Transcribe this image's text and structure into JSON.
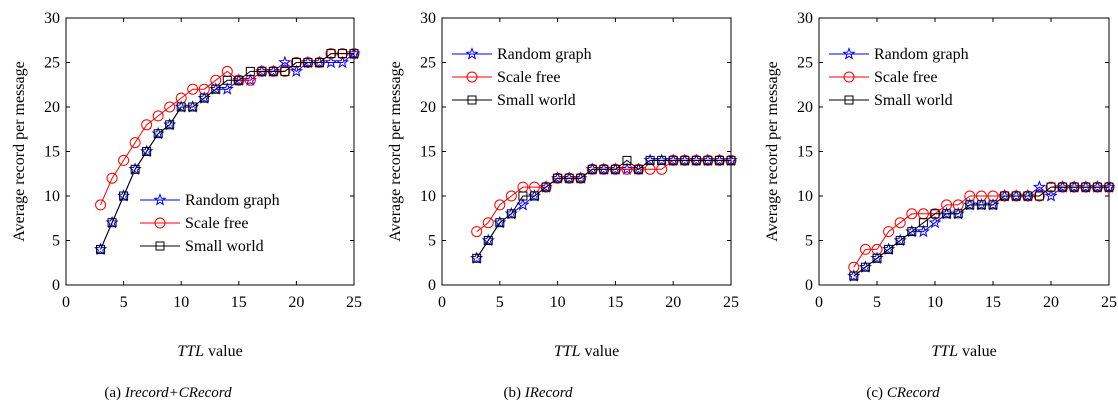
{
  "colors": {
    "random": "#0000ff",
    "scale": "#ff0000",
    "small": "#000000"
  },
  "chart_data": [
    {
      "type": "line",
      "title": "",
      "caption_prefix": "(a) ",
      "caption_italic": "Irecord+CRecord",
      "xlabel_italic": "TTL",
      "xlabel_rest": " value",
      "ylabel": "Average record per message",
      "xlim": [
        0,
        25
      ],
      "ylim": [
        0,
        30
      ],
      "xticks": [
        "0",
        "5",
        "10",
        "15",
        "20",
        "25"
      ],
      "yticks": [
        "0",
        "5",
        "10",
        "15",
        "20",
        "25",
        "30"
      ],
      "legend_position": "lower-right",
      "series": [
        {
          "name": "Random graph",
          "marker": "star",
          "color": "#0000ff",
          "x": [
            3,
            4,
            5,
            6,
            7,
            8,
            9,
            10,
            11,
            12,
            13,
            14,
            15,
            16,
            17,
            18,
            19,
            20,
            21,
            22,
            23,
            24,
            25
          ],
          "y": [
            4,
            7,
            10,
            13,
            15,
            17,
            18,
            20,
            20,
            21,
            22,
            22,
            23,
            23,
            24,
            24,
            25,
            24,
            25,
            25,
            25,
            25,
            26
          ]
        },
        {
          "name": "Scale free",
          "marker": "circle",
          "color": "#ff0000",
          "x": [
            3,
            4,
            5,
            6,
            7,
            8,
            9,
            10,
            11,
            12,
            13,
            14,
            15,
            16,
            17,
            18,
            19,
            20,
            21,
            22,
            23,
            24,
            25
          ],
          "y": [
            9,
            12,
            14,
            16,
            18,
            19,
            20,
            21,
            22,
            22,
            23,
            24,
            23,
            23,
            24,
            24,
            24,
            25,
            25,
            25,
            26,
            26,
            26
          ]
        },
        {
          "name": "Small world",
          "marker": "square",
          "color": "#000000",
          "x": [
            3,
            4,
            5,
            6,
            7,
            8,
            9,
            10,
            11,
            12,
            13,
            14,
            15,
            16,
            17,
            18,
            19,
            20,
            21,
            22,
            23,
            24,
            25
          ],
          "y": [
            4,
            7,
            10,
            13,
            15,
            17,
            18,
            20,
            20,
            21,
            22,
            23,
            23,
            24,
            24,
            24,
            24,
            25,
            25,
            25,
            26,
            26,
            26
          ]
        }
      ]
    },
    {
      "type": "line",
      "title": "",
      "caption_prefix": "(b) ",
      "caption_italic": "IRecord",
      "xlabel_italic": "TTL",
      "xlabel_rest": " value",
      "ylabel": "Average record per message",
      "xlim": [
        0,
        25
      ],
      "ylim": [
        0,
        30
      ],
      "xticks": [
        "0",
        "5",
        "10",
        "15",
        "20",
        "25"
      ],
      "yticks": [
        "0",
        "5",
        "10",
        "15",
        "20",
        "25",
        "30"
      ],
      "legend_position": "upper-left",
      "series": [
        {
          "name": "Random graph",
          "marker": "star",
          "color": "#0000ff",
          "x": [
            3,
            4,
            5,
            6,
            7,
            8,
            9,
            10,
            11,
            12,
            13,
            14,
            15,
            16,
            17,
            18,
            19,
            20,
            21,
            22,
            23,
            24,
            25
          ],
          "y": [
            3,
            5,
            7,
            8,
            9,
            10,
            11,
            12,
            12,
            12,
            13,
            13,
            13,
            13,
            13,
            14,
            14,
            14,
            14,
            14,
            14,
            14,
            14
          ]
        },
        {
          "name": "Scale free",
          "marker": "circle",
          "color": "#ff0000",
          "x": [
            3,
            4,
            5,
            6,
            7,
            8,
            9,
            10,
            11,
            12,
            13,
            14,
            15,
            16,
            17,
            18,
            19,
            20,
            21,
            22,
            23,
            24,
            25
          ],
          "y": [
            6,
            7,
            9,
            10,
            11,
            11,
            11,
            12,
            12,
            12,
            13,
            13,
            13,
            13,
            13,
            13,
            13,
            14,
            14,
            14,
            14,
            14,
            14
          ]
        },
        {
          "name": "Small world",
          "marker": "square",
          "color": "#000000",
          "x": [
            3,
            4,
            5,
            6,
            7,
            8,
            9,
            10,
            11,
            12,
            13,
            14,
            15,
            16,
            17,
            18,
            19,
            20,
            21,
            22,
            23,
            24,
            25
          ],
          "y": [
            3,
            5,
            7,
            8,
            10,
            10,
            11,
            12,
            12,
            12,
            13,
            13,
            13,
            14,
            13,
            14,
            14,
            14,
            14,
            14,
            14,
            14,
            14
          ]
        }
      ]
    },
    {
      "type": "line",
      "title": "",
      "caption_prefix": "(c) ",
      "caption_italic": "CRecord",
      "xlabel_italic": "TTL",
      "xlabel_rest": " value",
      "ylabel": "Average record per message",
      "xlim": [
        0,
        25
      ],
      "ylim": [
        0,
        30
      ],
      "xticks": [
        "0",
        "5",
        "10",
        "15",
        "20",
        "25"
      ],
      "yticks": [
        "0",
        "5",
        "10",
        "15",
        "20",
        "25",
        "30"
      ],
      "legend_position": "upper-left",
      "series": [
        {
          "name": "Random graph",
          "marker": "star",
          "color": "#0000ff",
          "x": [
            3,
            4,
            5,
            6,
            7,
            8,
            9,
            10,
            11,
            12,
            13,
            14,
            15,
            16,
            17,
            18,
            19,
            20,
            21,
            22,
            23,
            24,
            25
          ],
          "y": [
            1,
            2,
            3,
            4,
            5,
            6,
            6,
            7,
            8,
            8,
            9,
            9,
            9,
            10,
            10,
            10,
            11,
            10,
            11,
            11,
            11,
            11,
            11
          ]
        },
        {
          "name": "Scale free",
          "marker": "circle",
          "color": "#ff0000",
          "x": [
            3,
            4,
            5,
            6,
            7,
            8,
            9,
            10,
            11,
            12,
            13,
            14,
            15,
            16,
            17,
            18,
            19,
            20,
            21,
            22,
            23,
            24,
            25
          ],
          "y": [
            2,
            4,
            4,
            6,
            7,
            8,
            8,
            8,
            9,
            9,
            10,
            10,
            10,
            10,
            10,
            10,
            10,
            11,
            11,
            11,
            11,
            11,
            11
          ]
        },
        {
          "name": "Small world",
          "marker": "square",
          "color": "#000000",
          "x": [
            3,
            4,
            5,
            6,
            7,
            8,
            9,
            10,
            11,
            12,
            13,
            14,
            15,
            16,
            17,
            18,
            19,
            20,
            21,
            22,
            23,
            24,
            25
          ],
          "y": [
            1,
            2,
            3,
            4,
            5,
            6,
            7,
            8,
            8,
            8,
            9,
            9,
            9,
            10,
            10,
            10,
            10,
            11,
            11,
            11,
            11,
            11,
            11
          ]
        }
      ]
    }
  ]
}
